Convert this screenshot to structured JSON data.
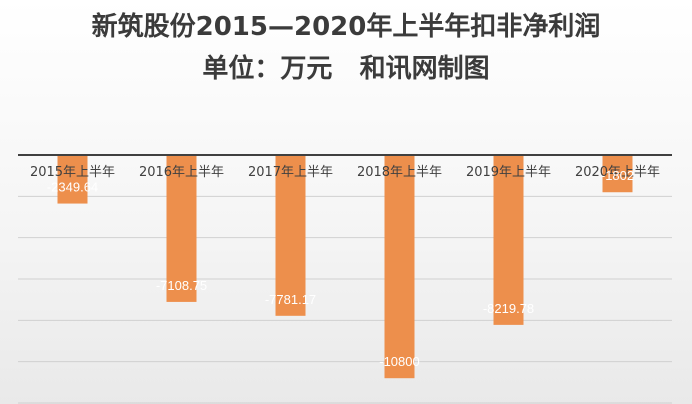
{
  "chart_data": {
    "type": "bar",
    "title": "新筑股份2015—2020年上半年扣非净利润",
    "subtitle": "单位：万元   和讯网制图",
    "categories": [
      "2015年上半年",
      "2016年上半年",
      "2017年上半年",
      "2018年上半年",
      "2019年上半年",
      "2020年上半年"
    ],
    "values": [
      -2349.64,
      -7108.75,
      -7781.17,
      -10800,
      -8219.78,
      -1802
    ],
    "data_labels": [
      "-2349.64",
      "-7108.75",
      "-7781.17",
      "-10800",
      "-8219.78",
      "-1802"
    ],
    "xlabel": "",
    "ylabel": "",
    "ylim": [
      -12000,
      0
    ],
    "grid": true,
    "legend": "none",
    "colors": {
      "bar": "#ed8f4c",
      "axis": "#404040",
      "grid": "#d0d0d0",
      "label": "#ffffff",
      "title": "#3b3b3b"
    }
  }
}
